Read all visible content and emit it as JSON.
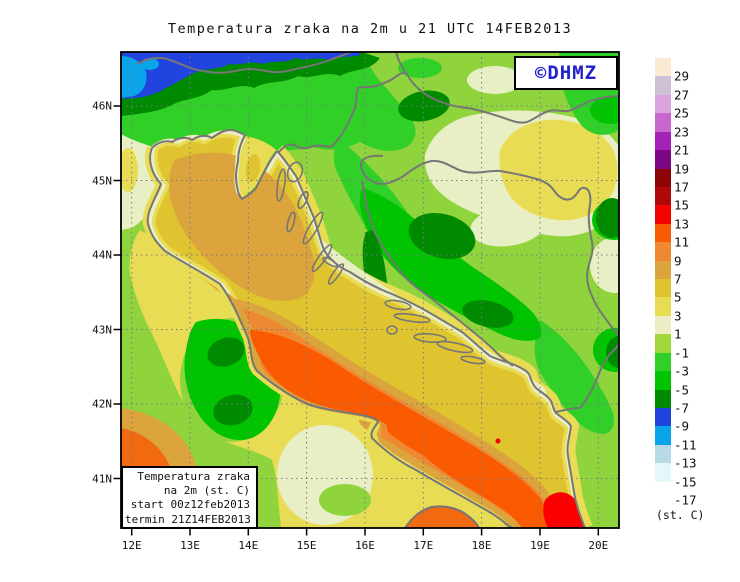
{
  "title": "Temperatura zraka na 2m u 21 UTC 14FEB2013",
  "branding": {
    "label": "©DHMZ",
    "color": "#2222CC"
  },
  "info_box": {
    "line1": "Temperatura zraka",
    "line2": "na 2m (st. C)",
    "line3": "start 00z12feb2013",
    "line4": "termin 21Z14FEB2013"
  },
  "colorbar": {
    "unit": "(st. C)",
    "entries": [
      {
        "label": "29",
        "color": "#FCE9D1"
      },
      {
        "label": "27",
        "color": "#CDC2D5"
      },
      {
        "label": "25",
        "color": "#DDA3DD"
      },
      {
        "label": "23",
        "color": "#C868CE"
      },
      {
        "label": "21",
        "color": "#A322B5"
      },
      {
        "label": "19",
        "color": "#7D0687"
      },
      {
        "label": "17",
        "color": "#8E0303"
      },
      {
        "label": "15",
        "color": "#B00808"
      },
      {
        "label": "13",
        "color": "#FA0000"
      },
      {
        "label": "11",
        "color": "#FA5A00"
      },
      {
        "label": "9",
        "color": "#EE8833"
      },
      {
        "label": "7",
        "color": "#DCA43C"
      },
      {
        "label": "5",
        "color": "#DFC32F"
      },
      {
        "label": "3",
        "color": "#E9DC55"
      },
      {
        "label": "1",
        "color": "#EDEDC5"
      },
      {
        "label": "-1",
        "color": "#A2D73C"
      },
      {
        "label": "-3",
        "color": "#30D028"
      },
      {
        "label": "-5",
        "color": "#00C400"
      },
      {
        "label": "-7",
        "color": "#008A00"
      },
      {
        "label": "-9",
        "color": "#2244DE"
      },
      {
        "label": "-11",
        "color": "#09A4EA"
      },
      {
        "label": "-13",
        "color": "#B6DBE6"
      },
      {
        "label": "-15",
        "color": "#E2F8F9"
      },
      {
        "label": "-17",
        "color": "#FFFFFF"
      }
    ]
  },
  "axes": {
    "lat_labels": [
      "46N",
      "45N",
      "44N",
      "43N",
      "42N",
      "41N"
    ],
    "lon_labels": [
      "12E",
      "13E",
      "14E",
      "15E",
      "16E",
      "17E",
      "18E",
      "19E",
      "20E"
    ]
  }
}
